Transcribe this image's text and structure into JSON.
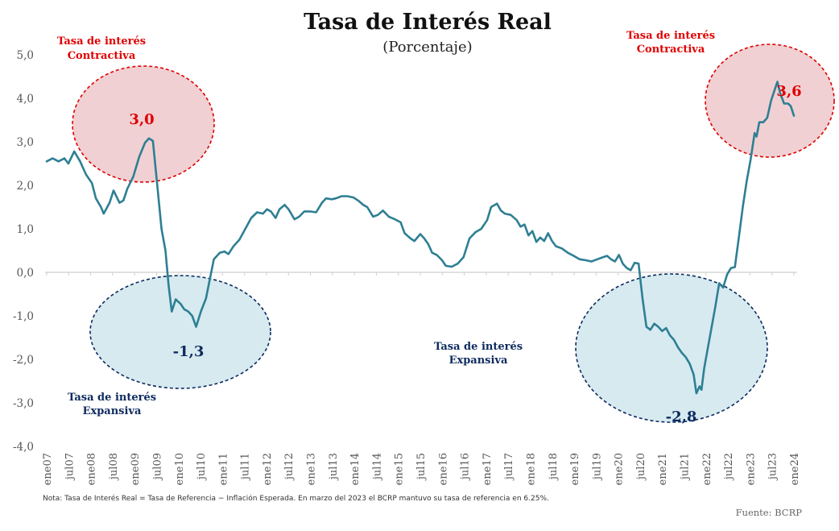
{
  "chart_data": {
    "type": "line",
    "title": "Tasa de Interés Real",
    "subtitle": "(Porcentaje)",
    "ylim": [
      -4,
      5
    ],
    "yticks": [
      5,
      4,
      3,
      2,
      1,
      0,
      -1,
      -2,
      -3,
      -4
    ],
    "ytick_labels": [
      "5,0",
      "4,0",
      "3,0",
      "2,0",
      "1,0",
      "0,0",
      "-1,0",
      "-2,0",
      "-3,0",
      "-4,0"
    ],
    "x_tick_labels": [
      "ene07",
      "jul07",
      "ene08",
      "jul08",
      "ene09",
      "jul09",
      "ene10",
      "jul10",
      "ene11",
      "jul11",
      "ene12",
      "jul12",
      "ene13",
      "jul13",
      "ene14",
      "jul14",
      "ene15",
      "jul15",
      "ene16",
      "jul16",
      "ene17",
      "jul17",
      "ene18",
      "jul18",
      "ene19",
      "jul19",
      "ene20",
      "jul20",
      "ene21",
      "jul21",
      "ene22",
      "jul22",
      "ene23",
      "jul23",
      "ene24"
    ],
    "grid": false,
    "line_color": "#2e7f93",
    "series": [
      {
        "values": [
          [
            2007.0,
            2.55
          ],
          [
            2007.15,
            2.62
          ],
          [
            2007.3,
            2.55
          ],
          [
            2007.45,
            2.62
          ],
          [
            2007.55,
            2.5
          ],
          [
            2007.7,
            2.78
          ],
          [
            2007.85,
            2.55
          ],
          [
            2008.0,
            2.25
          ],
          [
            2008.15,
            2.05
          ],
          [
            2008.25,
            1.7
          ],
          [
            2008.38,
            1.5
          ],
          [
            2008.45,
            1.35
          ],
          [
            2008.6,
            1.6
          ],
          [
            2008.7,
            1.88
          ],
          [
            2008.85,
            1.6
          ],
          [
            2008.95,
            1.65
          ],
          [
            2009.05,
            1.92
          ],
          [
            2009.2,
            2.2
          ],
          [
            2009.35,
            2.65
          ],
          [
            2009.5,
            2.98
          ],
          [
            2009.6,
            3.08
          ],
          [
            2009.7,
            3.02
          ],
          [
            2009.8,
            2.1
          ],
          [
            2009.92,
            1.0
          ],
          [
            2010.02,
            0.5
          ],
          [
            2010.1,
            -0.3
          ],
          [
            2010.18,
            -0.9
          ],
          [
            2010.28,
            -0.62
          ],
          [
            2010.4,
            -0.72
          ],
          [
            2010.5,
            -0.85
          ],
          [
            2010.6,
            -0.9
          ],
          [
            2010.7,
            -1.0
          ],
          [
            2010.8,
            -1.25
          ],
          [
            2010.92,
            -0.9
          ],
          [
            2011.05,
            -0.6
          ],
          [
            2011.15,
            -0.15
          ],
          [
            2011.25,
            0.3
          ],
          [
            2011.4,
            0.45
          ],
          [
            2011.52,
            0.48
          ],
          [
            2011.62,
            0.42
          ],
          [
            2011.75,
            0.6
          ],
          [
            2011.9,
            0.75
          ],
          [
            2012.05,
            1.0
          ],
          [
            2012.2,
            1.25
          ],
          [
            2012.35,
            1.38
          ],
          [
            2012.5,
            1.35
          ],
          [
            2012.6,
            1.45
          ],
          [
            2012.7,
            1.4
          ],
          [
            2012.82,
            1.25
          ],
          [
            2012.92,
            1.45
          ],
          [
            2013.05,
            1.55
          ],
          [
            2013.15,
            1.45
          ],
          [
            2013.3,
            1.22
          ],
          [
            2013.42,
            1.28
          ],
          [
            2013.55,
            1.4
          ],
          [
            2013.7,
            1.4
          ],
          [
            2013.85,
            1.38
          ],
          [
            2014.0,
            1.6
          ],
          [
            2014.1,
            1.7
          ],
          [
            2014.25,
            1.68
          ],
          [
            2014.35,
            1.7
          ],
          [
            2014.5,
            1.75
          ],
          [
            2014.65,
            1.75
          ],
          [
            2014.8,
            1.72
          ],
          [
            2014.92,
            1.65
          ],
          [
            2015.05,
            1.55
          ],
          [
            2015.15,
            1.5
          ],
          [
            2015.3,
            1.28
          ],
          [
            2015.42,
            1.32
          ],
          [
            2015.55,
            1.42
          ],
          [
            2015.7,
            1.28
          ],
          [
            2015.85,
            1.22
          ],
          [
            2016.0,
            1.15
          ],
          [
            2016.1,
            0.9
          ],
          [
            2016.25,
            0.78
          ],
          [
            2016.35,
            0.72
          ],
          [
            2016.5,
            0.88
          ],
          [
            2016.6,
            0.78
          ],
          [
            2016.7,
            0.65
          ],
          [
            2016.8,
            0.45
          ],
          [
            2016.92,
            0.4
          ],
          [
            2017.05,
            0.28
          ],
          [
            2017.15,
            0.15
          ],
          [
            2017.3,
            0.13
          ],
          [
            2017.45,
            0.2
          ],
          [
            2017.6,
            0.35
          ],
          [
            2017.75,
            0.78
          ],
          [
            2017.9,
            0.92
          ],
          [
            2018.05,
            1.0
          ],
          [
            2018.2,
            1.2
          ],
          [
            2018.3,
            1.5
          ],
          [
            2018.45,
            1.58
          ],
          [
            2018.55,
            1.42
          ],
          [
            2018.65,
            1.35
          ],
          [
            2018.8,
            1.32
          ],
          [
            2018.95,
            1.2
          ],
          [
            2019.05,
            1.05
          ],
          [
            2019.15,
            1.1
          ],
          [
            2019.25,
            0.85
          ],
          [
            2019.35,
            0.95
          ],
          [
            2019.45,
            0.7
          ],
          [
            2019.55,
            0.8
          ],
          [
            2019.65,
            0.72
          ],
          [
            2019.75,
            0.9
          ],
          [
            2019.85,
            0.72
          ],
          [
            2019.95,
            0.6
          ],
          [
            2020.1,
            0.55
          ],
          [
            2020.25,
            0.45
          ],
          [
            2020.4,
            0.38
          ],
          [
            2020.55,
            0.3
          ],
          [
            2020.7,
            0.28
          ],
          [
            2020.85,
            0.25
          ],
          [
            2021.0,
            0.3
          ],
          [
            2021.15,
            0.35
          ],
          [
            2021.25,
            0.38
          ],
          [
            2021.35,
            0.3
          ],
          [
            2021.45,
            0.25
          ],
          [
            2021.55,
            0.4
          ],
          [
            2021.65,
            0.2
          ],
          [
            2021.75,
            0.1
          ],
          [
            2021.85,
            0.05
          ],
          [
            2021.95,
            0.22
          ],
          [
            2022.05,
            0.2
          ],
          [
            2022.15,
            -0.6
          ],
          [
            2022.25,
            -1.25
          ],
          [
            2022.35,
            -1.32
          ],
          [
            2022.45,
            -1.18
          ],
          [
            2022.55,
            -1.25
          ],
          [
            2022.65,
            -1.35
          ],
          [
            2022.75,
            -1.28
          ],
          [
            2022.85,
            -1.45
          ],
          [
            2022.95,
            -1.55
          ],
          [
            2023.05,
            -1.72
          ],
          [
            2023.15,
            -1.85
          ],
          [
            2023.25,
            -1.95
          ],
          [
            2023.35,
            -2.1
          ],
          [
            2023.45,
            -2.35
          ],
          [
            2023.52,
            -2.78
          ],
          [
            2023.6,
            -2.62
          ],
          [
            2023.65,
            -2.7
          ],
          [
            2023.72,
            -2.2
          ],
          [
            2023.8,
            -1.8
          ],
          [
            2023.9,
            -1.3
          ],
          [
            2024.0,
            -0.8
          ],
          [
            2024.1,
            -0.25
          ],
          [
            2024.2,
            -0.35
          ],
          [
            2024.3,
            -0.05
          ],
          [
            2024.4,
            0.1
          ],
          [
            2024.5,
            0.12
          ],
          [
            2024.6,
            0.8
          ],
          [
            2024.7,
            1.5
          ],
          [
            2024.8,
            2.1
          ],
          [
            2024.9,
            2.6
          ],
          [
            2025.0,
            3.2
          ],
          [
            2025.05,
            3.12
          ],
          [
            2025.12,
            3.45
          ],
          [
            2025.22,
            3.45
          ],
          [
            2025.32,
            3.55
          ],
          [
            2025.42,
            3.95
          ],
          [
            2025.52,
            4.22
          ],
          [
            2025.58,
            4.38
          ],
          [
            2025.65,
            4.12
          ],
          [
            2025.75,
            3.88
          ],
          [
            2025.85,
            3.88
          ],
          [
            2025.92,
            3.82
          ],
          [
            2026.0,
            3.6
          ]
        ]
      }
    ],
    "annotations": {
      "contractiva_left": {
        "label_line1": "Tasa de interés",
        "label_line2": "Contractiva",
        "value": "3,0"
      },
      "expansiva_left": {
        "label_line1": "Tasa de interés",
        "label_line2": "Expansiva",
        "value": "-1,3"
      },
      "expansiva_middle": {
        "label_line1": "Tasa de interés",
        "label_line2": "Expansiva"
      },
      "expansiva_right": {
        "value": "-2,8"
      },
      "contractiva_right": {
        "label_line1": "Tasa de interés",
        "label_line2": "Contractiva",
        "value": "3,6"
      }
    },
    "note": "Nota: Tasa de Interés Real = Tasa de Referencia − Inflación Esperada. En marzo del 2023 el BCRP mantuvo su tasa de referencia en 6.25%.",
    "source": "Fuente: BCRP",
    "colors": {
      "red_fill": "#f0d0d3",
      "red_stroke": "#e00000",
      "blue_fill": "#d6eaf0",
      "blue_stroke": "#0d2a5e",
      "axis": "#cfcfcf"
    }
  }
}
